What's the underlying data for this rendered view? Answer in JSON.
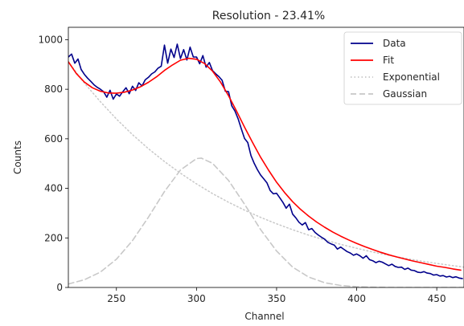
{
  "chart_data": {
    "type": "line",
    "title": "Resolution - 23.41%",
    "xlabel": "Channel",
    "ylabel": "Counts",
    "xlim": [
      220,
      467
    ],
    "ylim": [
      0,
      1050
    ],
    "xticks": [
      250,
      300,
      350,
      400,
      450
    ],
    "yticks": [
      0,
      200,
      400,
      600,
      800,
      1000
    ],
    "grid": false,
    "legend_position": "top-right",
    "series": [
      {
        "name": "Data",
        "color": "#00008b",
        "style": "solid",
        "x": [
          220,
          222,
          224,
          226,
          228,
          230,
          232,
          234,
          236,
          238,
          240,
          242,
          244,
          246,
          248,
          250,
          252,
          254,
          256,
          258,
          260,
          262,
          264,
          266,
          268,
          270,
          272,
          274,
          276,
          278,
          280,
          282,
          284,
          286,
          288,
          290,
          292,
          294,
          296,
          298,
          300,
          302,
          304,
          306,
          308,
          310,
          312,
          314,
          316,
          318,
          320,
          322,
          324,
          326,
          328,
          330,
          332,
          334,
          336,
          338,
          340,
          342,
          344,
          346,
          348,
          350,
          352,
          354,
          356,
          358,
          360,
          362,
          364,
          366,
          368,
          370,
          372,
          374,
          376,
          378,
          380,
          382,
          384,
          386,
          388,
          390,
          392,
          394,
          396,
          398,
          400,
          402,
          404,
          406,
          408,
          410,
          412,
          414,
          416,
          418,
          420,
          422,
          424,
          426,
          428,
          430,
          432,
          434,
          436,
          438,
          440,
          442,
          444,
          446,
          448,
          450,
          452,
          454,
          456,
          458,
          460,
          462,
          464,
          466
        ],
        "y": [
          930,
          942,
          905,
          922,
          880,
          860,
          845,
          832,
          818,
          808,
          800,
          790,
          768,
          796,
          760,
          781,
          772,
          790,
          806,
          782,
          812,
          795,
          826,
          813,
          838,
          848,
          862,
          870,
          885,
          893,
          978,
          905,
          962,
          928,
          982,
          924,
          960,
          918,
          970,
          930,
          930,
          903,
          936,
          889,
          908,
          875,
          862,
          851,
          836,
          792,
          790,
          733,
          712,
          681,
          640,
          601,
          585,
          532,
          501,
          476,
          454,
          438,
          422,
          391,
          378,
          380,
          362,
          343,
          320,
          336,
          296,
          281,
          263,
          252,
          262,
          233,
          238,
          222,
          212,
          203,
          195,
          182,
          176,
          171,
          155,
          163,
          154,
          145,
          139,
          130,
          135,
          128,
          118,
          128,
          112,
          108,
          100,
          106,
          102,
          95,
          88,
          94,
          85,
          81,
          82,
          73,
          78,
          70,
          68,
          62,
          60,
          64,
          58,
          56,
          50,
          52,
          46,
          48,
          42,
          45,
          40,
          43,
          38,
          36
        ]
      },
      {
        "name": "Fit",
        "color": "#ff0000",
        "style": "solid",
        "x": [
          220,
          225,
          230,
          235,
          240,
          245,
          250,
          255,
          260,
          265,
          270,
          275,
          280,
          285,
          290,
          295,
          300,
          305,
          310,
          315,
          320,
          325,
          330,
          335,
          340,
          345,
          350,
          355,
          360,
          365,
          370,
          375,
          380,
          385,
          390,
          395,
          400,
          405,
          410,
          415,
          420,
          425,
          430,
          435,
          440,
          445,
          450,
          455,
          460,
          465
        ],
        "y": [
          911,
          863,
          829,
          806,
          792,
          785,
          784,
          788,
          797,
          810,
          828,
          850,
          876,
          898,
          917,
          925,
          921,
          904,
          873,
          829,
          774,
          712,
          647,
          585,
          526,
          473,
          425,
          383,
          346,
          315,
          288,
          264,
          243,
          224,
          207,
          192,
          178,
          165,
          153,
          142,
          132,
          123,
          115,
          107,
          100,
          93,
          86,
          81,
          75,
          70
        ]
      },
      {
        "name": "Exponential",
        "color": "#c8c8c8",
        "style": "dotted",
        "x": [
          220,
          230,
          240,
          250,
          260,
          270,
          280,
          290,
          300,
          310,
          320,
          330,
          340,
          350,
          360,
          370,
          380,
          390,
          400,
          410,
          420,
          430,
          440,
          450,
          460,
          467
        ],
        "y": [
          910,
          825,
          750,
          680,
          617,
          560,
          508,
          461,
          418,
          379,
          344,
          312,
          283,
          257,
          233,
          211,
          192,
          174,
          158,
          143,
          130,
          118,
          107,
          97,
          88,
          82
        ]
      },
      {
        "name": "Gaussian",
        "color": "#c8c8c8",
        "style": "dashed",
        "x": [
          220,
          230,
          240,
          250,
          260,
          270,
          280,
          290,
          300,
          303,
          310,
          320,
          330,
          340,
          350,
          360,
          370,
          380,
          390,
          400,
          410,
          420,
          430,
          440,
          450,
          460,
          467
        ],
        "y": [
          14,
          31,
          62,
          114,
          189,
          284,
          387,
          474,
          520,
          522,
          501,
          432,
          336,
          234,
          147,
          82,
          42,
          19,
          8,
          3,
          1,
          0,
          0,
          0,
          0,
          0,
          0
        ]
      }
    ]
  }
}
